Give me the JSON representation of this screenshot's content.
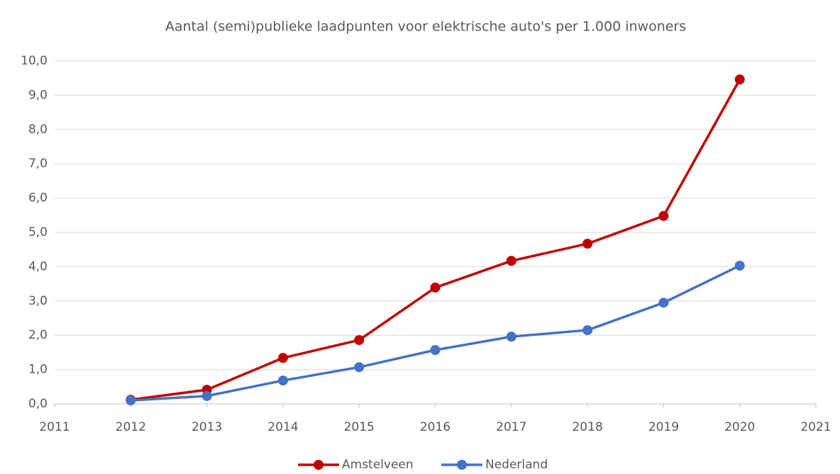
{
  "chart_data": {
    "type": "line",
    "title": "Aantal (semi)publieke laadpunten voor elektrische auto's per 1.000 inwoners",
    "x": [
      2012,
      2013,
      2014,
      2015,
      2016,
      2017,
      2018,
      2019,
      2020
    ],
    "series": [
      {
        "name": "Amstelveen",
        "color": "#c00000",
        "values": [
          0.12,
          0.41,
          1.34,
          1.86,
          3.39,
          4.17,
          4.67,
          5.48,
          9.46
        ]
      },
      {
        "name": "Nederland",
        "color": "#4472c4",
        "values": [
          0.1,
          0.23,
          0.68,
          1.07,
          1.57,
          1.96,
          2.15,
          2.95,
          4.03
        ]
      }
    ],
    "xlim": [
      2011,
      2021
    ],
    "xticks": [
      2011,
      2012,
      2013,
      2014,
      2015,
      2016,
      2017,
      2018,
      2019,
      2020,
      2021
    ],
    "ylim": [
      0,
      10
    ],
    "yticks": [
      {
        "value": 0,
        "label": "0,0"
      },
      {
        "value": 1,
        "label": "1,0"
      },
      {
        "value": 2,
        "label": "2,0"
      },
      {
        "value": 3,
        "label": "3,0"
      },
      {
        "value": 4,
        "label": "4,0"
      },
      {
        "value": 5,
        "label": "5,0"
      },
      {
        "value": 6,
        "label": "6,0"
      },
      {
        "value": 7,
        "label": "7,0"
      },
      {
        "value": 8,
        "label": "8,0"
      },
      {
        "value": 9,
        "label": "9,0"
      },
      {
        "value": 10,
        "label": "10,0"
      }
    ],
    "grid": true,
    "legend": "bottom"
  }
}
